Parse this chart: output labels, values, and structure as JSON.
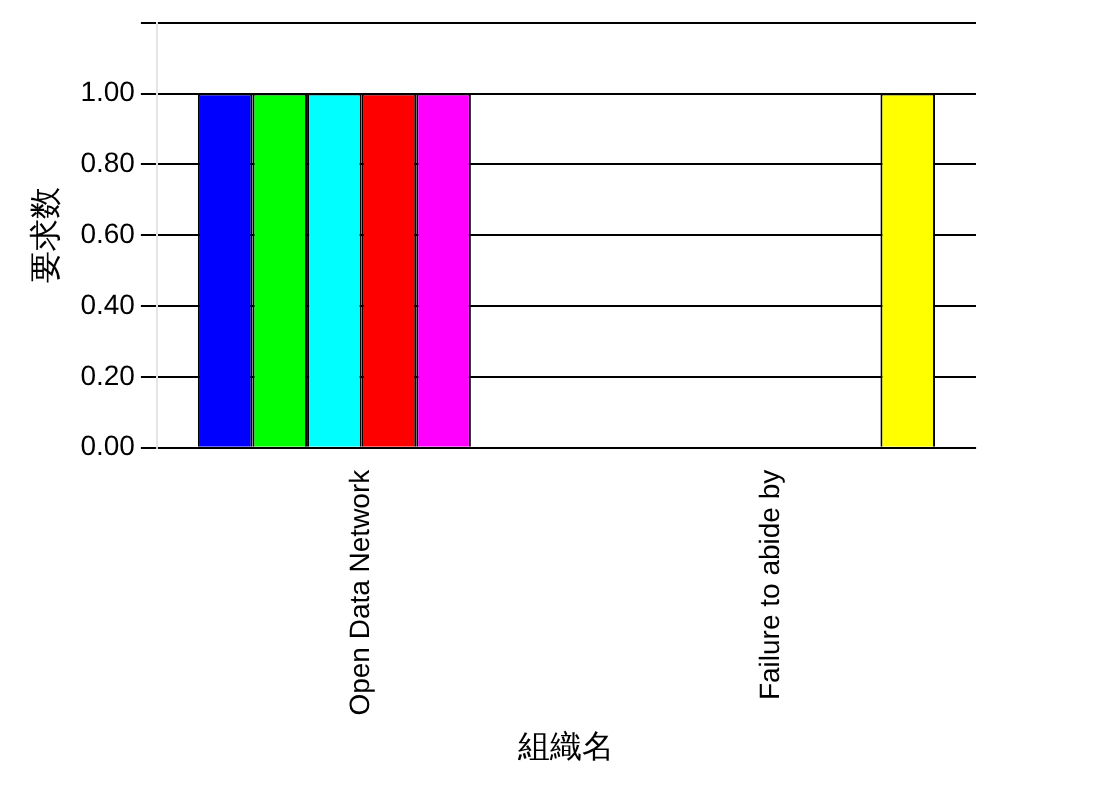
{
  "chart_data": {
    "type": "bar",
    "xlabel": "組織名",
    "ylabel": "要求数",
    "categories": [
      "Open Data Network",
      "Failure to abide by"
    ],
    "series": [
      {
        "color": "#0000ff",
        "values": [
          1,
          0
        ]
      },
      {
        "color": "#00ff00",
        "values": [
          1,
          0
        ]
      },
      {
        "color": "#00ffff",
        "values": [
          1,
          0
        ]
      },
      {
        "color": "#ff0000",
        "values": [
          1,
          0
        ]
      },
      {
        "color": "#ff00ff",
        "values": [
          1,
          0
        ]
      },
      {
        "color": "#ffff00",
        "values": [
          0,
          1
        ]
      }
    ],
    "ylim": [
      0,
      1.2
    ],
    "yticks": [
      {
        "value": 0,
        "label": "0.00"
      },
      {
        "value": 0.2,
        "label": "0.20"
      },
      {
        "value": 0.4,
        "label": "0.40"
      },
      {
        "value": 0.6,
        "label": "0.60"
      },
      {
        "value": 0.8,
        "label": "0.80"
      },
      {
        "value": 1,
        "label": "1.00"
      },
      {
        "value": 1.2,
        "label": null
      }
    ],
    "grid": true
  }
}
